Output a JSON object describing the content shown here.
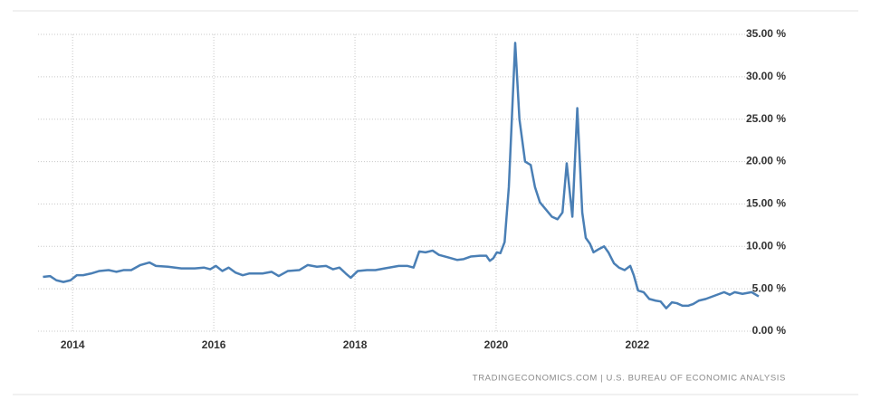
{
  "chart_data": {
    "type": "line",
    "source": "TRADINGECONOMICS.COM  |  U.S. BUREAU OF ECONOMIC ANALYSIS",
    "xlim": [
      2013.51,
      2023.81
    ],
    "xticks": [
      2014,
      2016,
      2018,
      2020,
      2022
    ],
    "ylim": [
      0,
      35
    ],
    "yticks": [
      {
        "value": 0,
        "label": "0.00 %"
      },
      {
        "value": 5,
        "label": "5.00 %"
      },
      {
        "value": 10,
        "label": "10.00 %"
      },
      {
        "value": 15,
        "label": "15.00 %"
      },
      {
        "value": 20,
        "label": "20.00 %"
      },
      {
        "value": 25,
        "label": "25.00 %"
      },
      {
        "value": 30,
        "label": "30.00 %"
      },
      {
        "value": 35,
        "label": "35.00 %"
      }
    ],
    "grid": true,
    "x": [
      2013.58,
      2013.68,
      2013.77,
      2013.87,
      2013.97,
      2014.06,
      2014.15,
      2014.26,
      2014.38,
      2014.51,
      2014.62,
      2014.72,
      2014.83,
      2014.96,
      2015.09,
      2015.18,
      2015.35,
      2015.54,
      2015.73,
      2015.86,
      2015.95,
      2016.03,
      2016.12,
      2016.21,
      2016.31,
      2016.41,
      2016.5,
      2016.69,
      2016.82,
      2016.92,
      2017.05,
      2017.21,
      2017.33,
      2017.46,
      2017.59,
      2017.69,
      2017.78,
      2017.87,
      2017.94,
      2018.04,
      2018.17,
      2018.29,
      2018.42,
      2018.62,
      2018.74,
      2018.83,
      2018.91,
      2019.0,
      2019.1,
      2019.19,
      2019.32,
      2019.45,
      2019.54,
      2019.64,
      2019.77,
      2019.86,
      2019.91,
      2019.96,
      2020.01,
      2020.06,
      2020.12,
      2020.18,
      2020.27,
      2020.33,
      2020.41,
      2020.49,
      2020.55,
      2020.62,
      2020.72,
      2020.79,
      2020.87,
      2020.94,
      2021.0,
      2021.08,
      2021.15,
      2021.22,
      2021.27,
      2021.33,
      2021.38,
      2021.46,
      2021.53,
      2021.59,
      2021.67,
      2021.74,
      2021.82,
      2021.9,
      2021.95,
      2022.01,
      2022.09,
      2022.17,
      2022.26,
      2022.33,
      2022.41,
      2022.49,
      2022.56,
      2022.64,
      2022.72,
      2022.79,
      2022.87,
      2022.97,
      2023.1,
      2023.23,
      2023.31,
      2023.38,
      2023.49,
      2023.62,
      2023.72
    ],
    "series": [
      {
        "color": "#4a7fb5",
        "values": [
          6.4,
          6.5,
          6.0,
          5.8,
          6.0,
          6.6,
          6.6,
          6.8,
          7.1,
          7.2,
          7.0,
          7.2,
          7.2,
          7.8,
          8.1,
          7.7,
          7.6,
          7.4,
          7.4,
          7.5,
          7.3,
          7.7,
          7.1,
          7.5,
          6.9,
          6.6,
          6.8,
          6.8,
          7.0,
          6.5,
          7.1,
          7.2,
          7.8,
          7.6,
          7.7,
          7.3,
          7.5,
          6.8,
          6.3,
          7.1,
          7.2,
          7.2,
          7.4,
          7.7,
          7.7,
          7.5,
          9.4,
          9.3,
          9.5,
          9.0,
          8.7,
          8.4,
          8.5,
          8.8,
          8.9,
          8.9,
          8.3,
          8.6,
          9.3,
          9.2,
          10.5,
          17.0,
          34.0,
          25.0,
          20.0,
          19.6,
          17.0,
          15.2,
          14.2,
          13.5,
          13.2,
          14.0,
          19.8,
          13.5,
          26.3,
          14.0,
          11.0,
          10.3,
          9.3,
          9.7,
          10.0,
          9.3,
          8.0,
          7.5,
          7.2,
          7.7,
          6.6,
          4.8,
          4.6,
          3.8,
          3.6,
          3.5,
          2.7,
          3.4,
          3.3,
          3.0,
          3.0,
          3.2,
          3.6,
          3.8,
          4.2,
          4.6,
          4.3,
          4.6,
          4.4,
          4.6,
          4.1
        ]
      }
    ]
  }
}
